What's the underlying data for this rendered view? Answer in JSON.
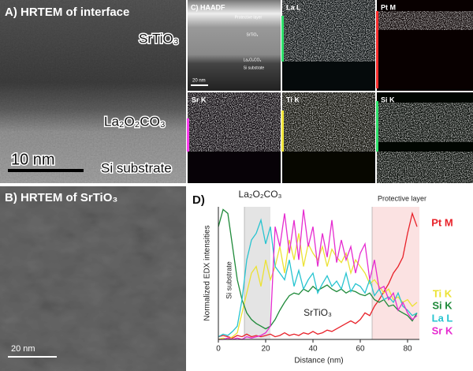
{
  "panel_a": {
    "title": "A) HRTEM of interface",
    "labels": [
      "SrTiO₃",
      "La₂O₂CO₃",
      "Si substrate"
    ],
    "scale": "10 nm"
  },
  "panel_b": {
    "title": "B) HRTEM of SrTiO₃",
    "scale": "20 nm"
  },
  "panel_c": {
    "title": "C) HAADF",
    "layers": [
      "Protective layer",
      "SrTiO₃",
      "La₂O₂CO₃",
      "Si substrate"
    ],
    "scale": "20 nm",
    "maps": [
      "La L",
      "Pt M",
      "Sr K",
      "Ti K",
      "Si K"
    ]
  },
  "chart_data": {
    "type": "line",
    "panel_label": "D)",
    "xlabel": "Distance (nm)",
    "ylabel": "Normalized EDX intensities",
    "x": [
      0,
      2,
      4,
      6,
      8,
      10,
      12,
      14,
      16,
      18,
      20,
      22,
      24,
      26,
      28,
      30,
      32,
      34,
      36,
      38,
      40,
      42,
      44,
      46,
      48,
      50,
      52,
      54,
      56,
      58,
      60,
      62,
      64,
      66,
      68,
      70,
      72,
      74,
      76,
      78,
      80,
      82,
      84
    ],
    "xlim": [
      0,
      85
    ],
    "xticks": [
      0,
      20,
      40,
      60,
      80
    ],
    "ylim": [
      0,
      1
    ],
    "regions": [
      {
        "label": "La₂O₂CO₃",
        "range": [
          11,
          22
        ],
        "color": "#e4e4e4"
      },
      {
        "label": "Protective layer",
        "range": [
          65,
          85
        ],
        "color": "#fbe2e2"
      }
    ],
    "annotations": [
      "Si substrate",
      "SrTiO₃"
    ],
    "series": [
      {
        "name": "Pt M",
        "color": "#e8222a",
        "values": [
          0.02,
          0.03,
          0.02,
          0.01,
          0.03,
          0.02,
          0.04,
          0.02,
          0.03,
          0.02,
          0.03,
          0.04,
          0.02,
          0.03,
          0.05,
          0.03,
          0.04,
          0.03,
          0.05,
          0.04,
          0.06,
          0.04,
          0.05,
          0.07,
          0.06,
          0.08,
          0.1,
          0.12,
          0.14,
          0.12,
          0.15,
          0.2,
          0.18,
          0.25,
          0.3,
          0.36,
          0.42,
          0.5,
          0.55,
          0.62,
          0.8,
          0.95,
          0.85
        ]
      },
      {
        "name": "Ti K",
        "color": "#ece233",
        "values": [
          0,
          0.01,
          0,
          0.02,
          0.05,
          0.2,
          0.35,
          0.5,
          0.55,
          0.4,
          0.6,
          0.45,
          0.55,
          0.7,
          0.5,
          0.75,
          0.6,
          0.8,
          0.55,
          0.72,
          0.65,
          0.6,
          0.7,
          0.55,
          0.68,
          0.62,
          0.58,
          0.65,
          0.5,
          0.6,
          0.55,
          0.5,
          0.42,
          0.45,
          0.4,
          0.35,
          0.38,
          0.3,
          0.32,
          0.28,
          0.3,
          0.25,
          0.28
        ]
      },
      {
        "name": "Si K",
        "color": "#1f8a3a",
        "values": [
          0.85,
          0.98,
          0.95,
          0.7,
          0.45,
          0.3,
          0.2,
          0.15,
          0.12,
          0.1,
          0.08,
          0.1,
          0.15,
          0.22,
          0.28,
          0.33,
          0.35,
          0.34,
          0.38,
          0.36,
          0.4,
          0.37,
          0.39,
          0.41,
          0.38,
          0.36,
          0.38,
          0.35,
          0.37,
          0.36,
          0.34,
          0.33,
          0.35,
          0.3,
          0.28,
          0.3,
          0.25,
          0.26,
          0.22,
          0.2,
          0.18,
          0.14,
          0.2
        ]
      },
      {
        "name": "La L",
        "color": "#27c4d0",
        "values": [
          0.02,
          0.04,
          0.03,
          0.06,
          0.1,
          0.3,
          0.6,
          0.75,
          0.8,
          0.9,
          0.72,
          0.85,
          0.55,
          0.5,
          0.45,
          0.6,
          0.4,
          0.52,
          0.38,
          0.45,
          0.5,
          0.35,
          0.42,
          0.48,
          0.4,
          0.44,
          0.38,
          0.5,
          0.36,
          0.42,
          0.4,
          0.35,
          0.45,
          0.33,
          0.38,
          0.3,
          0.32,
          0.28,
          0.35,
          0.25,
          0.22,
          0.18,
          0.2
        ]
      },
      {
        "name": "Sr K",
        "color": "#e62bd0",
        "values": [
          0,
          0,
          0.01,
          0,
          0.01,
          0,
          0.02,
          0.01,
          0.02,
          0.03,
          0.05,
          0.1,
          0.85,
          0.7,
          0.95,
          0.65,
          0.9,
          0.6,
          0.98,
          0.7,
          0.85,
          0.55,
          0.8,
          0.62,
          0.9,
          0.58,
          0.75,
          0.6,
          0.7,
          0.5,
          0.65,
          0.72,
          0.45,
          0.6,
          0.38,
          0.4,
          0.3,
          0.35,
          0.22,
          0.28,
          0.2,
          0.15,
          0.18
        ]
      }
    ]
  }
}
